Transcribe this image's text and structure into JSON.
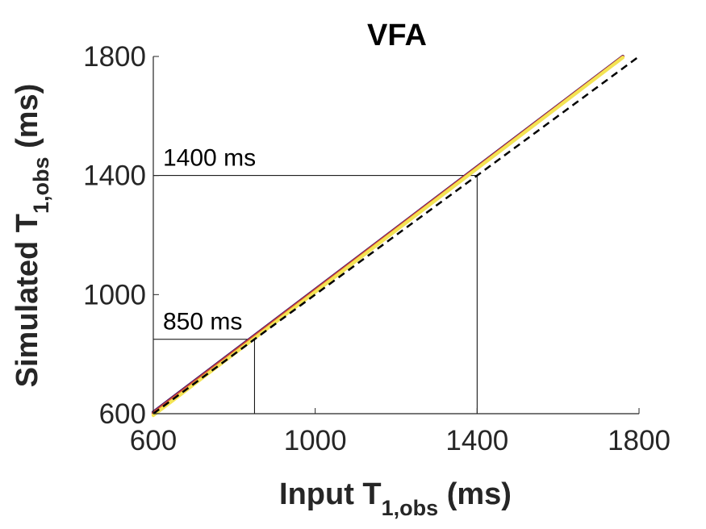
{
  "chart_data": {
    "type": "line",
    "title": "VFA",
    "xlabel": {
      "main": "Input T",
      "sub": "1,obs",
      "unit": " (ms)"
    },
    "ylabel": {
      "main": "Simulated T",
      "sub": "1,obs",
      "unit": " (ms)"
    },
    "xlim": [
      600,
      1800
    ],
    "ylim": [
      600,
      1800
    ],
    "xticks": [
      600,
      1000,
      1400,
      1800
    ],
    "yticks": [
      600,
      1000,
      1400,
      1800
    ],
    "grid": false,
    "series": [
      {
        "color": "#2d0a55",
        "x": [
          600,
          1760
        ],
        "y": [
          605,
          1800
        ]
      },
      {
        "color": "#8a2268",
        "x": [
          600,
          1760
        ],
        "y": [
          603,
          1799
        ]
      },
      {
        "color": "#d14a36",
        "x": [
          600,
          1760
        ],
        "y": [
          601,
          1798
        ]
      },
      {
        "color": "#f4c23a",
        "x": [
          600,
          1760
        ],
        "y": [
          596,
          1797
        ]
      },
      {
        "color": "#f3e455",
        "x": [
          600,
          1760
        ],
        "y": [
          594,
          1796
        ]
      }
    ],
    "identity_line": {
      "color": "#000000",
      "style": "dashed",
      "x": [
        600,
        1800
      ],
      "y": [
        600,
        1800
      ]
    },
    "reference_lines": [
      {
        "value": 850,
        "label": "850 ms"
      },
      {
        "value": 1400,
        "label": "1400 ms"
      }
    ]
  }
}
